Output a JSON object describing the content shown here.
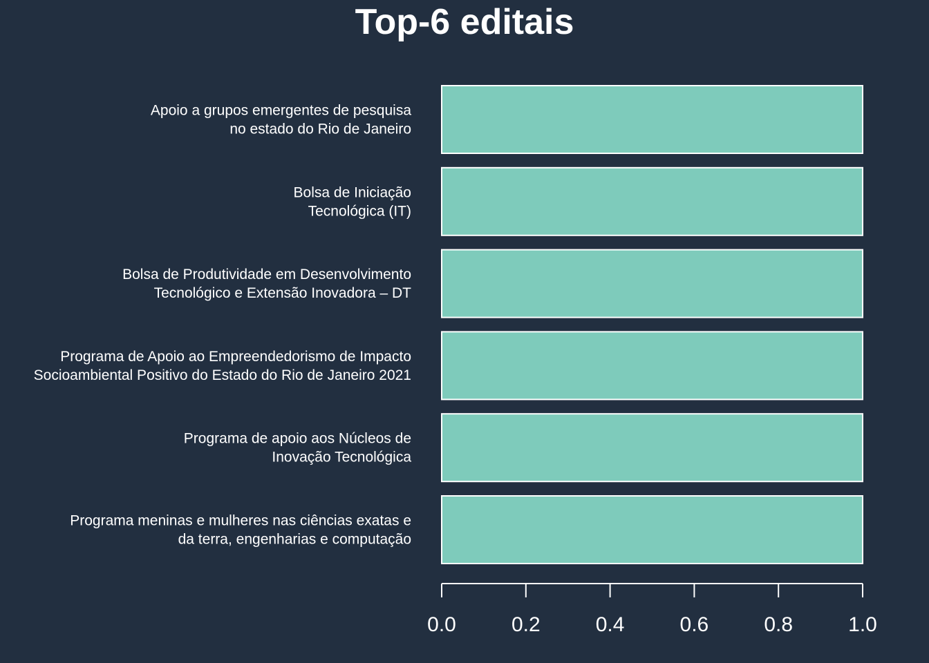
{
  "chart_data": {
    "type": "bar",
    "orientation": "horizontal",
    "title": "Top-6 editais",
    "xlabel": "",
    "ylabel": "",
    "categories": [
      [
        "Apoio a grupos emergentes de pesquisa",
        "no estado do Rio de Janeiro"
      ],
      [
        "Bolsa de Iniciação",
        "Tecnológica (IT)"
      ],
      [
        "Bolsa de Produtividade em Desenvolvimento",
        "Tecnológico e Extensão Inovadora – DT"
      ],
      [
        "Programa de Apoio ao Empreendedorismo de Impacto",
        "Socioambiental Positivo do Estado do Rio de Janeiro 2021"
      ],
      [
        "Programa de apoio aos Núcleos de",
        "Inovação Tecnológica"
      ],
      [
        "Programa meninas e mulheres nas ciências exatas e",
        "da terra, engenharias e computação"
      ]
    ],
    "values": [
      1,
      1,
      1,
      1,
      1,
      1
    ],
    "xlim": [
      0,
      1
    ],
    "xticks": [
      "0.0",
      "0.2",
      "0.4",
      "0.6",
      "0.8",
      "1.0"
    ],
    "grid": false,
    "legend": "none",
    "colors": {
      "background": "#222f40",
      "bar_fill": "#7ecbbb",
      "bar_stroke": "#ffffff",
      "text": "#ffffff",
      "axis": "#ffffff"
    }
  }
}
